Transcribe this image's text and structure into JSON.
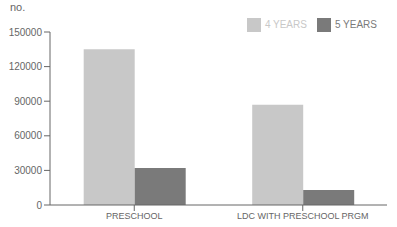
{
  "chart_data": {
    "type": "bar",
    "y_label": "no.",
    "categories": [
      "PRESCHOOL",
      "LDC WITH PRESCHOOL PRGM"
    ],
    "series": [
      {
        "name": "4 YEARS",
        "color": "#c8c8c8",
        "values": [
          135000,
          87000
        ]
      },
      {
        "name": "5 YEARS",
        "color": "#7a7a7a",
        "values": [
          32000,
          13000
        ]
      }
    ],
    "ylim": [
      0,
      150000
    ],
    "yticks": [
      0,
      30000,
      60000,
      90000,
      120000,
      150000
    ],
    "grid": false,
    "legend": "upper right"
  }
}
